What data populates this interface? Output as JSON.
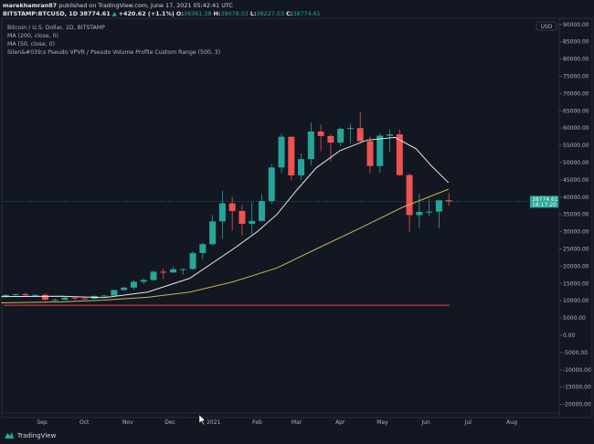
{
  "header": {
    "author": "marekhamran87",
    "published": "published on TradingView.com, June 17, 2021 05:42:41 UTC",
    "symbol": "BITSTAMP:BTCUSD, 1D",
    "price": "38774.61",
    "change": "+420.62 (+1.1%)",
    "o_label": "O:",
    "o": "38361.38",
    "h_label": "H:",
    "h": "39078.03",
    "l_label": "L:",
    "l": "38227.03",
    "c_label": "C:",
    "c": "38774.61"
  },
  "legend": [
    "Bitcoin / U.S. Dollar, 1D, BITSTAMP",
    "MA (200, close, 0)",
    "MA (50, close, 0)",
    "Silen&#039;s Pseudo VPVR / Pseudo Volume Profile Custom Range (500, 3)"
  ],
  "price_tag": {
    "price": "38774.61",
    "countdown": "18:17:20"
  },
  "currency": "USD",
  "footer": {
    "brand": "TradingView"
  },
  "colors": {
    "up": "#26a69a",
    "down": "#ef5350",
    "ma50": "#e8e8e8",
    "ma200": "#c9b458",
    "level": "#e04848"
  },
  "chart_data": {
    "type": "candlestick",
    "y_ticks": [
      "90000.00",
      "85000.00",
      "80000.00",
      "75000.00",
      "70000.00",
      "65000.00",
      "60000.00",
      "55000.00",
      "50000.00",
      "45000.00",
      "40000.00",
      "35000.00",
      "30000.00",
      "25000.00",
      "20000.00",
      "15000.00",
      "10000.00",
      "5000.00",
      "0.00",
      "-5000.00",
      "-10000.00",
      "-15000.00",
      "-20000.00"
    ],
    "ylim": [
      -22000,
      91000
    ],
    "x_ticks": [
      [
        "2020-09-01",
        "Sep"
      ],
      [
        "2020-10-01",
        "Oct"
      ],
      [
        "2020-11-01",
        "Nov"
      ],
      [
        "2020-12-01",
        "Dec"
      ],
      [
        "2021-01-01",
        "2021"
      ],
      [
        "2021-02-01",
        "Feb"
      ],
      [
        "2021-03-01",
        "Mar"
      ],
      [
        "2021-04-01",
        "Apr"
      ],
      [
        "2021-05-01",
        "May"
      ],
      [
        "2021-06-01",
        "Jun"
      ],
      [
        "2021-07-01",
        "Jul"
      ],
      [
        "2021-08-01",
        "Aug"
      ]
    ],
    "candles": [
      [
        "2020-08-03",
        11100,
        11900,
        10900,
        11700
      ],
      [
        "2020-08-10",
        11700,
        12100,
        11100,
        11900
      ],
      [
        "2020-08-17",
        11900,
        12400,
        11300,
        11600
      ],
      [
        "2020-08-24",
        11600,
        11800,
        11100,
        11700
      ],
      [
        "2020-08-31",
        11700,
        12100,
        10000,
        10300
      ],
      [
        "2020-09-07",
        10300,
        10600,
        9900,
        10300
      ],
      [
        "2020-09-14",
        10300,
        11100,
        10200,
        10900
      ],
      [
        "2020-09-21",
        10900,
        10900,
        10200,
        10700
      ],
      [
        "2020-09-28",
        10700,
        10900,
        10400,
        10600
      ],
      [
        "2020-10-05",
        10600,
        11500,
        10500,
        11400
      ],
      [
        "2020-10-12",
        11400,
        11700,
        11200,
        11500
      ],
      [
        "2020-10-19",
        11500,
        13200,
        11400,
        13100
      ],
      [
        "2020-10-26",
        13100,
        14100,
        12900,
        13800
      ],
      [
        "2020-11-02",
        13800,
        15900,
        13200,
        15500
      ],
      [
        "2020-11-09",
        15500,
        16500,
        14800,
        16000
      ],
      [
        "2020-11-16",
        16000,
        18800,
        15800,
        18400
      ],
      [
        "2020-11-23",
        18400,
        19400,
        16300,
        18200
      ],
      [
        "2020-11-30",
        18200,
        19900,
        18000,
        19100
      ],
      [
        "2020-12-07",
        19100,
        19300,
        17600,
        19200
      ],
      [
        "2020-12-14",
        19200,
        24300,
        19000,
        23800
      ],
      [
        "2020-12-21",
        23800,
        26800,
        22000,
        26400
      ],
      [
        "2020-12-28",
        26400,
        34800,
        26000,
        33000
      ],
      [
        "2021-01-04",
        33000,
        41900,
        28000,
        38200
      ],
      [
        "2021-01-11",
        38200,
        40100,
        30400,
        36000
      ],
      [
        "2021-01-18",
        36000,
        37800,
        28900,
        32300
      ],
      [
        "2021-01-25",
        32300,
        38500,
        29300,
        33100
      ],
      [
        "2021-02-01",
        33100,
        40900,
        33000,
        38900
      ],
      [
        "2021-02-08",
        38900,
        49700,
        38100,
        48600
      ],
      [
        "2021-02-15",
        48600,
        58300,
        47000,
        57500
      ],
      [
        "2021-02-22",
        57500,
        57500,
        44900,
        46300
      ],
      [
        "2021-03-01",
        46300,
        52600,
        45000,
        51000
      ],
      [
        "2021-03-08",
        51000,
        61700,
        49300,
        59000
      ],
      [
        "2021-03-15",
        59000,
        61000,
        53300,
        57700
      ],
      [
        "2021-03-22",
        57700,
        58300,
        50300,
        55800
      ],
      [
        "2021-03-29",
        55800,
        60200,
        54800,
        59800
      ],
      [
        "2021-04-05",
        59800,
        61200,
        55600,
        60000
      ],
      [
        "2021-04-12",
        60000,
        64800,
        55900,
        56200
      ],
      [
        "2021-04-19",
        56200,
        57500,
        47000,
        49000
      ],
      [
        "2021-04-26",
        49000,
        58400,
        47100,
        57800
      ],
      [
        "2021-05-03",
        57800,
        59600,
        52900,
        58200
      ],
      [
        "2021-05-10",
        58200,
        59500,
        46000,
        46400
      ],
      [
        "2021-05-17",
        46400,
        46900,
        30000,
        34800
      ],
      [
        "2021-05-24",
        34800,
        40900,
        31000,
        35700
      ],
      [
        "2021-05-31",
        35700,
        39500,
        34600,
        35800
      ],
      [
        "2021-06-07",
        35800,
        38600,
        31000,
        39100
      ],
      [
        "2021-06-14",
        39100,
        41300,
        37500,
        38774.61
      ]
    ],
    "series": [
      {
        "name": "MA (50, close, 0)",
        "points": [
          [
            "2020-08-03",
            11200
          ],
          [
            "2020-09-15",
            11300
          ],
          [
            "2020-10-15",
            10900
          ],
          [
            "2020-11-15",
            12500
          ],
          [
            "2020-12-15",
            16500
          ],
          [
            "2021-01-15",
            25000
          ],
          [
            "2021-02-01",
            30000
          ],
          [
            "2021-02-15",
            35000
          ],
          [
            "2021-03-01",
            42000
          ],
          [
            "2021-03-15",
            48500
          ],
          [
            "2021-04-01",
            53500
          ],
          [
            "2021-04-20",
            56500
          ],
          [
            "2021-05-10",
            57300
          ],
          [
            "2021-05-25",
            54000
          ],
          [
            "2021-06-05",
            49000
          ],
          [
            "2021-06-17",
            44200
          ]
        ]
      },
      {
        "name": "MA (200, close, 0)",
        "points": [
          [
            "2020-08-03",
            9400
          ],
          [
            "2020-09-15",
            9700
          ],
          [
            "2020-10-15",
            10200
          ],
          [
            "2020-11-15",
            11000
          ],
          [
            "2020-12-15",
            12500
          ],
          [
            "2021-01-15",
            15500
          ],
          [
            "2021-02-15",
            19500
          ],
          [
            "2021-03-15",
            25000
          ],
          [
            "2021-04-15",
            31000
          ],
          [
            "2021-05-15",
            37000
          ],
          [
            "2021-06-17",
            42300
          ]
        ]
      }
    ],
    "level_line": 8700
  }
}
